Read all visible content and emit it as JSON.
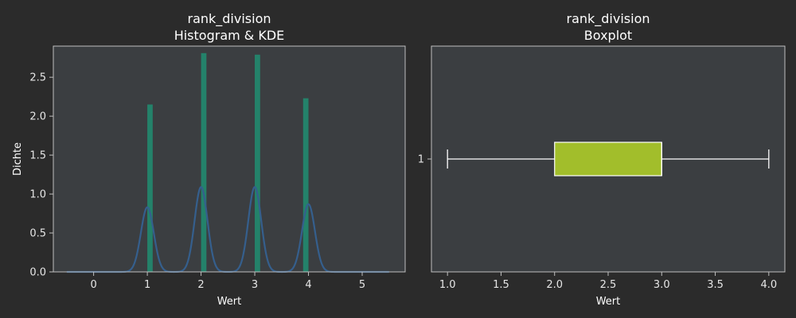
{
  "colors": {
    "figure_bg": "#2b2b2b",
    "axes_bg": "#3b3e41",
    "spine": "#bfbfbf",
    "text": "#ffffff",
    "hist_bar": "#24826a",
    "kde_line": "#355f8d",
    "box_fill": "#a2be2b",
    "box_line": "#ffffff"
  },
  "chart_data": [
    {
      "type": "bar",
      "subtype": "histogram_with_kde",
      "title_line1": "rank_division",
      "title_line2": "Histogram & KDE",
      "xlabel": "Wert",
      "ylabel": "Dichte",
      "xlim": [
        -0.75,
        5.8
      ],
      "ylim": [
        0,
        2.9
      ],
      "xticks": [
        "0",
        "1",
        "2",
        "3",
        "4",
        "5"
      ],
      "yticks": [
        "0.0",
        "0.5",
        "1.0",
        "1.5",
        "2.0",
        "2.5"
      ],
      "bars": [
        {
          "x": 1.05,
          "value": 2.15
        },
        {
          "x": 2.05,
          "value": 2.81
        },
        {
          "x": 3.05,
          "value": 2.79
        },
        {
          "x": 3.95,
          "value": 2.23
        }
      ],
      "kde": {
        "peaks": [
          {
            "x": 1.0,
            "height": 0.83
          },
          {
            "x": 2.0,
            "height": 1.09
          },
          {
            "x": 3.0,
            "height": 1.09
          },
          {
            "x": 4.0,
            "height": 0.87
          }
        ],
        "x_range": [
          -0.5,
          5.5
        ]
      }
    },
    {
      "type": "boxplot",
      "title_line1": "rank_division",
      "title_line2": "Boxplot",
      "xlabel": "Wert",
      "xlim": [
        0.85,
        4.15
      ],
      "xticks": [
        "1.0",
        "1.5",
        "2.0",
        "2.5",
        "3.0",
        "3.5",
        "4.0"
      ],
      "category_label": "1",
      "whisker_low": 1.0,
      "q1": 2.0,
      "median": 3.0,
      "q3": 3.0,
      "whisker_high": 4.0
    }
  ]
}
